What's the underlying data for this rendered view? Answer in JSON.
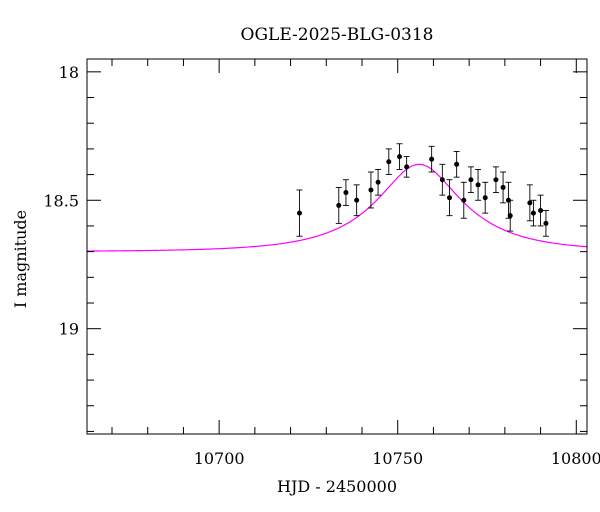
{
  "chart_data": {
    "type": "scatter",
    "title": "OGLE-2025-BLG-0318",
    "xlabel": "HJD - 2450000",
    "ylabel": "I magnitude",
    "xlim": [
      10663,
      10803
    ],
    "ylim": [
      19.41,
      17.95
    ],
    "y_inverted": true,
    "grid": false,
    "x_ticks_major": [
      10700,
      10750,
      10800
    ],
    "x_tick_labels": [
      "10700",
      "10750",
      "10800"
    ],
    "y_ticks_major": [
      18,
      18.5,
      19
    ],
    "y_tick_labels": [
      "18",
      "18.5",
      "19"
    ],
    "model_color": "#ff00ff",
    "point_color": "#000000",
    "model_curve": {
      "baseline_mag": 18.7,
      "peak_mag": 18.36,
      "t0": 10756,
      "tE": 25
    },
    "series": [
      {
        "type": "errorbar",
        "x": [
          10722.5,
          10733.5,
          10735.5,
          10738.5,
          10742.5,
          10744.5,
          10747.5,
          10750.5,
          10752.5,
          10759.5,
          10762.5,
          10764.5,
          10766.5,
          10768.5,
          10770.5,
          10772.5,
          10774.5,
          10777.5,
          10779.5,
          10781.0,
          10781.5,
          10787.0,
          10788.0,
          10790.0,
          10791.5
        ],
        "y": [
          18.55,
          18.52,
          18.47,
          18.5,
          18.46,
          18.43,
          18.35,
          18.33,
          18.37,
          18.34,
          18.42,
          18.49,
          18.36,
          18.5,
          18.42,
          18.44,
          18.49,
          18.42,
          18.45,
          18.5,
          18.56,
          18.51,
          18.55,
          18.54,
          18.59
        ],
        "err": [
          0.09,
          0.07,
          0.05,
          0.06,
          0.07,
          0.05,
          0.05,
          0.05,
          0.04,
          0.05,
          0.06,
          0.07,
          0.05,
          0.07,
          0.05,
          0.06,
          0.06,
          0.05,
          0.06,
          0.07,
          0.06,
          0.07,
          0.05,
          0.06,
          0.05
        ]
      }
    ]
  }
}
